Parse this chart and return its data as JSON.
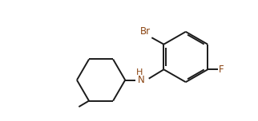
{
  "bg_color": "#ffffff",
  "line_color": "#1a1a1a",
  "atom_color_Br": "#8B4513",
  "atom_color_F": "#8B4513",
  "atom_color_N": "#8B4513",
  "line_width": 1.4,
  "font_size_atoms": 8.5,
  "fig_width": 3.22,
  "fig_height": 1.52,
  "dpi": 100,
  "xlim": [
    0,
    10
  ],
  "ylim": [
    0,
    5
  ]
}
